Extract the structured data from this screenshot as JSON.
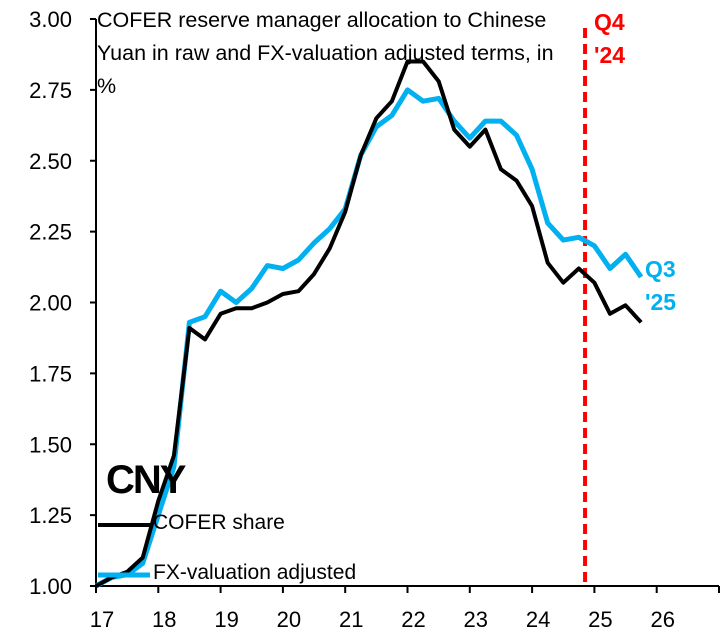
{
  "chart_data": {
    "type": "line",
    "title": "COFER reserve manager allocation to Chinese Yuan in raw and FX-valuation adjusted terms, in %",
    "annotation": "CNY",
    "xlabel": "",
    "ylabel": "",
    "xlim": [
      17,
      27
    ],
    "ylim": [
      1.0,
      3.0
    ],
    "x_ticks": [
      "17",
      "18",
      "19",
      "20",
      "21",
      "22",
      "23",
      "24",
      "25",
      "26"
    ],
    "y_ticks": [
      "1.00",
      "1.25",
      "1.50",
      "1.75",
      "2.00",
      "2.25",
      "2.50",
      "2.75",
      "3.00"
    ],
    "grid": false,
    "legend": "bottom-left",
    "x": [
      17.0,
      17.25,
      17.5,
      17.75,
      18.0,
      18.25,
      18.5,
      18.75,
      19.0,
      19.25,
      19.5,
      19.75,
      20.0,
      20.25,
      20.5,
      20.75,
      21.0,
      21.25,
      21.5,
      21.75,
      22.0,
      22.25,
      22.5,
      22.75,
      23.0,
      23.25,
      23.5,
      23.75,
      24.0,
      24.25,
      24.5,
      24.75,
      25.0,
      25.25,
      25.5,
      25.75
    ],
    "series": [
      {
        "name": "COFER share",
        "color": "#000000",
        "values": [
          1.0,
          1.03,
          1.05,
          1.1,
          1.3,
          1.46,
          1.91,
          1.87,
          1.96,
          1.98,
          1.98,
          2.0,
          2.03,
          2.04,
          2.1,
          2.19,
          2.32,
          2.52,
          2.65,
          2.71,
          2.85,
          2.85,
          2.78,
          2.61,
          2.55,
          2.61,
          2.47,
          2.43,
          2.34,
          2.14,
          2.07,
          2.12,
          2.07,
          1.96,
          1.99,
          1.93
        ]
      },
      {
        "name": "FX-valuation adjusted",
        "color": "#00b0f0",
        "values": [
          1.0,
          1.03,
          1.04,
          1.08,
          1.25,
          1.42,
          1.93,
          1.95,
          2.04,
          2.0,
          2.05,
          2.13,
          2.12,
          2.15,
          2.21,
          2.26,
          2.33,
          2.52,
          2.62,
          2.66,
          2.75,
          2.71,
          2.72,
          2.64,
          2.58,
          2.64,
          2.64,
          2.59,
          2.47,
          2.28,
          2.22,
          2.23,
          2.2,
          2.12,
          2.17,
          2.09
        ]
      }
    ],
    "vline": {
      "x": 24.85,
      "color": "#ff0000",
      "style": "dashed",
      "label_line1": "Q4",
      "label_line2": "'24"
    },
    "end_label": {
      "line1": "Q3",
      "line2": "'25",
      "color": "#00b0f0"
    }
  }
}
